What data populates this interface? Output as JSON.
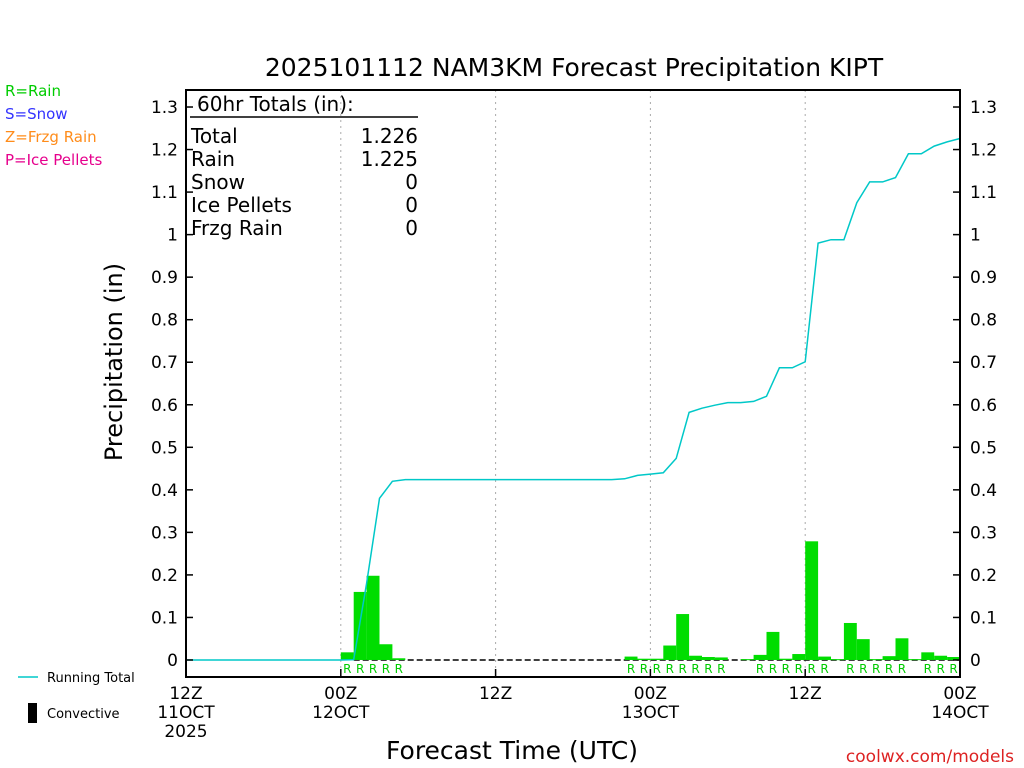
{
  "chart_data": {
    "type": "bar",
    "title": "2025101112 NAM3KM Forecast Precipitation KIPT",
    "xlabel": "Forecast Time (UTC)",
    "ylabel": "Precipitation (in)",
    "ylim": [
      -0.04,
      1.34
    ],
    "xlim": [
      0,
      60
    ],
    "y_ticks": [
      0,
      0.1,
      0.2,
      0.3,
      0.4,
      0.5,
      0.6,
      0.7,
      0.8,
      0.9,
      1,
      1.1,
      1.2,
      1.3
    ],
    "y_tick_labels": [
      "0",
      "0.1",
      "0.2",
      "0.3",
      "0.4",
      "0.5",
      "0.6",
      "0.7",
      "0.8",
      "0.9",
      "1",
      "1.1",
      "1.2",
      "1.3"
    ],
    "x_ticks": [
      {
        "x": 0,
        "lines": [
          "12Z",
          "11OCT",
          "2025"
        ]
      },
      {
        "x": 12,
        "lines": [
          "00Z",
          "12OCT"
        ]
      },
      {
        "x": 24,
        "lines": [
          "12Z"
        ]
      },
      {
        "x": 36,
        "lines": [
          "00Z",
          "13OCT"
        ]
      },
      {
        "x": 48,
        "lines": [
          "12Z"
        ]
      },
      {
        "x": 60,
        "lines": [
          "00Z",
          "14OCT"
        ]
      }
    ],
    "grid_x": [
      12,
      24,
      36,
      48
    ],
    "legend_left": [
      {
        "label": "R=Rain",
        "color": "#00cc00"
      },
      {
        "label": "S=Snow",
        "color": "#3333ff"
      },
      {
        "label": "Z=Frzg Rain",
        "color": "#ff8c1a"
      },
      {
        "label": "P=Ice Pellets",
        "color": "#e6008c"
      }
    ],
    "legend_bottom": [
      {
        "label": "Running Total",
        "symbol": "line",
        "color": "#00c8c8"
      },
      {
        "label": "Convective",
        "symbol": "bar",
        "color": "#000000"
      }
    ],
    "totals_box": {
      "heading": "60hr Totals (in):",
      "rows": [
        {
          "label": "Total",
          "value": "1.226"
        },
        {
          "label": "Rain",
          "value": "1.225"
        },
        {
          "label": "Snow",
          "value": "0"
        },
        {
          "label": "Ice Pellets",
          "value": "0"
        },
        {
          "label": "Frzg Rain",
          "value": "0"
        }
      ]
    },
    "bar_color": "#00dd00",
    "line_color": "#00c8c8",
    "series": [
      {
        "name": "Rain",
        "bar_width": 1,
        "x": [
          13,
          14,
          15,
          16,
          17,
          35,
          36,
          37,
          38,
          39,
          40,
          41,
          42,
          44,
          45,
          46,
          47,
          48,
          49,
          50,
          51,
          52,
          53,
          54,
          55,
          56,
          57,
          58,
          59,
          60
        ],
        "values": [
          0.018,
          0.16,
          0.198,
          0.037,
          0.004,
          0.008,
          0.003,
          0.003,
          0.034,
          0.108,
          0.01,
          0.007,
          0.006,
          0.002,
          0.012,
          0.066,
          0.003,
          0.014,
          0.279,
          0.008,
          0.002,
          0.087,
          0.049,
          0.002,
          0.009,
          0.051,
          0.002,
          0.018,
          0.01,
          0.007
        ]
      },
      {
        "name": "Running Total",
        "type": "line",
        "x": [
          0,
          1,
          2,
          3,
          4,
          5,
          6,
          7,
          8,
          9,
          10,
          11,
          12,
          13,
          14,
          15,
          16,
          17,
          18,
          19,
          20,
          21,
          22,
          23,
          24,
          25,
          26,
          27,
          28,
          29,
          30,
          31,
          32,
          33,
          34,
          35,
          36,
          37,
          38,
          39,
          40,
          41,
          42,
          43,
          44,
          45,
          46,
          47,
          48,
          49,
          50,
          51,
          52,
          53,
          54,
          55,
          56,
          57,
          58,
          59,
          60
        ],
        "values": [
          0,
          0,
          0,
          0,
          0,
          0,
          0,
          0,
          0,
          0,
          0,
          0,
          0,
          0.001,
          0.18,
          0.38,
          0.42,
          0.424,
          0.424,
          0.424,
          0.424,
          0.424,
          0.424,
          0.424,
          0.424,
          0.424,
          0.424,
          0.424,
          0.424,
          0.424,
          0.424,
          0.424,
          0.424,
          0.424,
          0.426,
          0.434,
          0.437,
          0.44,
          0.474,
          0.582,
          0.592,
          0.599,
          0.605,
          0.605,
          0.608,
          0.62,
          0.687,
          0.687,
          0.701,
          0.98,
          0.988,
          0.988,
          1.075,
          1.124,
          1.124,
          1.134,
          1.19,
          1.19,
          1.208,
          1.218,
          1.226
        ]
      }
    ],
    "ptype_labels": {
      "letter": "R",
      "x": [
        13,
        14,
        15,
        16,
        17,
        35,
        36,
        37,
        38,
        39,
        40,
        41,
        42,
        45,
        46,
        47,
        48,
        49,
        50,
        52,
        53,
        54,
        55,
        56,
        58,
        59,
        60
      ]
    }
  },
  "credit": "coolwx.com/models"
}
